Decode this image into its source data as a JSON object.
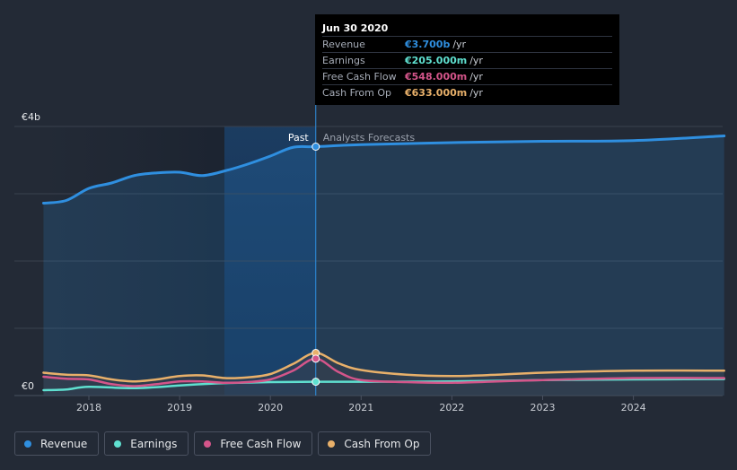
{
  "tooltip": {
    "date": "Jun 30 2020",
    "rows": [
      {
        "label": "Revenue",
        "value": "€3.700b",
        "unit": "/yr",
        "color": "#2f8fe0"
      },
      {
        "label": "Earnings",
        "value": "€205.000m",
        "unit": "/yr",
        "color": "#5fe0d0"
      },
      {
        "label": "Free Cash Flow",
        "value": "€548.000m",
        "unit": "/yr",
        "color": "#d4558a"
      },
      {
        "label": "Cash From Op",
        "value": "€633.000m",
        "unit": "/yr",
        "color": "#e8b06a"
      }
    ]
  },
  "chart_data": {
    "type": "line",
    "y_unit_label_top": "€4b",
    "y_unit_label_bottom": "€0",
    "ylim": [
      0,
      4000
    ],
    "xlim": [
      2017.5,
      2025.0
    ],
    "x_ticks": [
      "2018",
      "2019",
      "2020",
      "2021",
      "2022",
      "2023",
      "2024"
    ],
    "past_label": "Past",
    "forecast_label": "Analysts Forecasts",
    "divider_x": 2020.5,
    "series": [
      {
        "name": "Revenue",
        "color": "#2f8fe0",
        "points": [
          [
            2017.5,
            2860
          ],
          [
            2017.75,
            2900
          ],
          [
            2018.0,
            3080
          ],
          [
            2018.25,
            3160
          ],
          [
            2018.5,
            3270
          ],
          [
            2018.75,
            3310
          ],
          [
            2019.0,
            3320
          ],
          [
            2019.25,
            3270
          ],
          [
            2019.5,
            3340
          ],
          [
            2019.75,
            3440
          ],
          [
            2020.0,
            3560
          ],
          [
            2020.25,
            3690
          ],
          [
            2020.5,
            3700
          ],
          [
            2021.0,
            3730
          ],
          [
            2022.0,
            3760
          ],
          [
            2023.0,
            3780
          ],
          [
            2024.0,
            3790
          ],
          [
            2025.0,
            3860
          ]
        ]
      },
      {
        "name": "Earnings",
        "color": "#5fe0d0",
        "points": [
          [
            2017.5,
            80
          ],
          [
            2017.75,
            90
          ],
          [
            2018.0,
            130
          ],
          [
            2018.5,
            110
          ],
          [
            2019.0,
            150
          ],
          [
            2019.25,
            170
          ],
          [
            2019.5,
            185
          ],
          [
            2020.0,
            200
          ],
          [
            2020.5,
            205
          ],
          [
            2021.0,
            205
          ],
          [
            2022.0,
            210
          ],
          [
            2023.0,
            230
          ],
          [
            2024.0,
            240
          ],
          [
            2025.0,
            245
          ]
        ]
      },
      {
        "name": "Free Cash Flow",
        "color": "#d4558a",
        "points": [
          [
            2017.5,
            280
          ],
          [
            2017.75,
            250
          ],
          [
            2018.0,
            240
          ],
          [
            2018.25,
            170
          ],
          [
            2018.5,
            140
          ],
          [
            2018.75,
            170
          ],
          [
            2019.0,
            210
          ],
          [
            2019.25,
            210
          ],
          [
            2019.5,
            190
          ],
          [
            2019.75,
            200
          ],
          [
            2020.0,
            240
          ],
          [
            2020.25,
            370
          ],
          [
            2020.5,
            548
          ],
          [
            2020.75,
            350
          ],
          [
            2021.0,
            230
          ],
          [
            2021.5,
            200
          ],
          [
            2022.0,
            190
          ],
          [
            2022.5,
            210
          ],
          [
            2023.0,
            230
          ],
          [
            2024.0,
            260
          ],
          [
            2025.0,
            260
          ]
        ]
      },
      {
        "name": "Cash From Op",
        "color": "#e8b06a",
        "points": [
          [
            2017.5,
            340
          ],
          [
            2017.75,
            310
          ],
          [
            2018.0,
            300
          ],
          [
            2018.25,
            240
          ],
          [
            2018.5,
            210
          ],
          [
            2018.75,
            240
          ],
          [
            2019.0,
            290
          ],
          [
            2019.25,
            300
          ],
          [
            2019.5,
            260
          ],
          [
            2019.75,
            270
          ],
          [
            2020.0,
            320
          ],
          [
            2020.25,
            470
          ],
          [
            2020.5,
            633
          ],
          [
            2020.75,
            480
          ],
          [
            2021.0,
            380
          ],
          [
            2021.5,
            310
          ],
          [
            2022.0,
            290
          ],
          [
            2022.5,
            310
          ],
          [
            2023.0,
            340
          ],
          [
            2024.0,
            370
          ],
          [
            2025.0,
            370
          ]
        ]
      }
    ]
  },
  "legend": [
    {
      "label": "Revenue",
      "color": "#2f8fe0"
    },
    {
      "label": "Earnings",
      "color": "#5fe0d0"
    },
    {
      "label": "Free Cash Flow",
      "color": "#d4558a"
    },
    {
      "label": "Cash From Op",
      "color": "#e8b06a"
    }
  ]
}
